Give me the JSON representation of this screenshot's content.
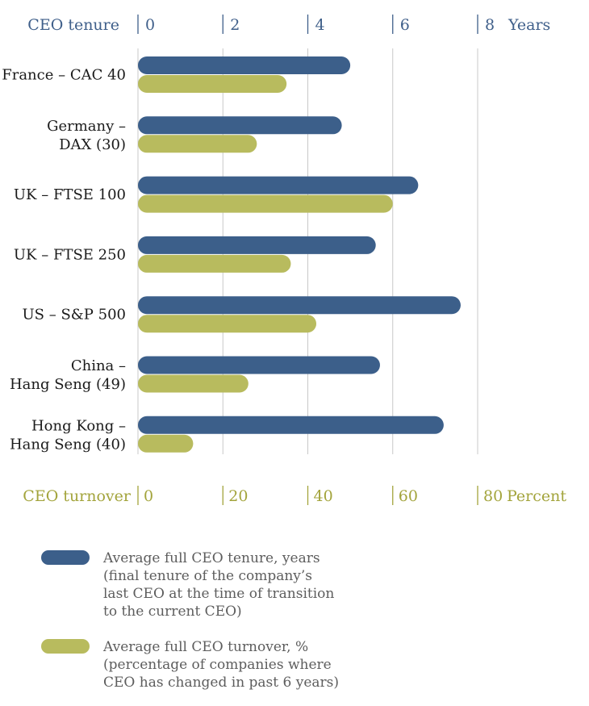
{
  "chart_data": {
    "type": "bar",
    "orientation": "horizontal",
    "categories": [
      [
        "France – CAC 40"
      ],
      [
        "Germany –",
        "DAX (30)"
      ],
      [
        "UK – FTSE 100"
      ],
      [
        "UK – FTSE 250"
      ],
      [
        "US – S&P 500"
      ],
      [
        "China –",
        "Hang Seng (49)"
      ],
      [
        "Hong Kong –",
        "Hang Seng (40)"
      ]
    ],
    "series": [
      {
        "key": "tenure",
        "color": "#3c5f8a",
        "values": [
          5.0,
          4.8,
          6.6,
          5.6,
          7.6,
          5.7,
          7.2
        ],
        "legend": [
          "Average full CEO tenure, years",
          "(final tenure of the company’s",
          "last CEO at the time of transition",
          "to the current CEO)"
        ]
      },
      {
        "key": "turnover",
        "color": "#b8bb5e",
        "values": [
          35,
          28,
          60,
          36,
          42,
          26,
          13
        ],
        "legend": [
          "Average full CEO turnover, %",
          "(percentage of companies where",
          "CEO has changed in past 6 years)"
        ]
      }
    ],
    "axis_top": {
      "title": "CEO tenure",
      "ticks": [
        "0",
        "2",
        "4",
        "6",
        "8"
      ],
      "unit": "Years",
      "range": [
        0,
        8
      ]
    },
    "axis_bottom": {
      "title": "CEO turnover",
      "ticks": [
        "0",
        "20",
        "40",
        "60",
        "80"
      ],
      "unit": "Percent",
      "range": [
        0,
        80
      ]
    },
    "grid": true,
    "legend_position": "bottom"
  }
}
